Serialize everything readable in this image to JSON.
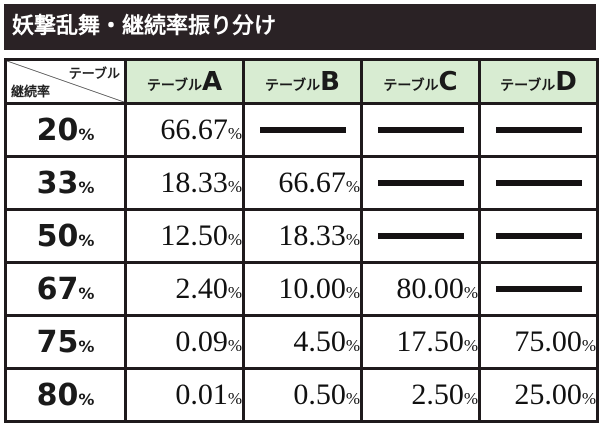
{
  "title": "妖撃乱舞・継続率振り分け",
  "corner": {
    "top": "テーブル",
    "bottom": "継続率"
  },
  "columns": [
    {
      "prefix": "テーブル",
      "letter": "A"
    },
    {
      "prefix": "テーブル",
      "letter": "B"
    },
    {
      "prefix": "テーブル",
      "letter": "C"
    },
    {
      "prefix": "テーブル",
      "letter": "D"
    }
  ],
  "rows": [
    {
      "rate": "20",
      "unit": "%",
      "cells": [
        {
          "v": "66.67",
          "u": "%"
        },
        null,
        null,
        null
      ]
    },
    {
      "rate": "33",
      "unit": "%",
      "cells": [
        {
          "v": "18.33",
          "u": "%"
        },
        {
          "v": "66.67",
          "u": "%"
        },
        null,
        null
      ]
    },
    {
      "rate": "50",
      "unit": "%",
      "cells": [
        {
          "v": "12.50",
          "u": "%"
        },
        {
          "v": "18.33",
          "u": "%"
        },
        null,
        null
      ]
    },
    {
      "rate": "67",
      "unit": "%",
      "cells": [
        {
          "v": "2.40",
          "u": "%"
        },
        {
          "v": "10.00",
          "u": "%"
        },
        {
          "v": "80.00",
          "u": "%"
        },
        null
      ]
    },
    {
      "rate": "75",
      "unit": "%",
      "cells": [
        {
          "v": "0.09",
          "u": "%"
        },
        {
          "v": "4.50",
          "u": "%"
        },
        {
          "v": "17.50",
          "u": "%"
        },
        {
          "v": "75.00",
          "u": "%"
        }
      ]
    },
    {
      "rate": "80",
      "unit": "%",
      "cells": [
        {
          "v": "0.01",
          "u": "%"
        },
        {
          "v": "0.50",
          "u": "%"
        },
        {
          "v": "2.50",
          "u": "%"
        },
        {
          "v": "25.00",
          "u": "%"
        }
      ]
    }
  ]
}
